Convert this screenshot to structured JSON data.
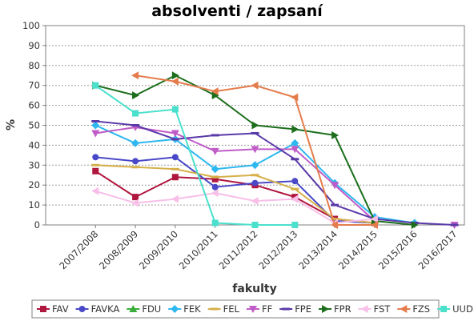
{
  "chart_data": {
    "type": "line",
    "title": "absolventi / zapsaní",
    "xlabel": "fakulty",
    "ylabel": "%",
    "ylim": [
      0,
      100
    ],
    "yticks": [
      "0",
      "10",
      "20",
      "30",
      "40",
      "50",
      "60",
      "70",
      "80",
      "90",
      "100"
    ],
    "grid": true,
    "legend_position": "bottom",
    "categories": [
      "2007/2008",
      "2008/2009",
      "2009/2010",
      "2010/2011",
      "2011/2012",
      "2012/2013",
      "2013/2014",
      "2014/2015",
      "2015/2016",
      "2016/2017"
    ],
    "series": [
      {
        "name": "FAV",
        "color": "#b0173f",
        "marker": "square",
        "values": [
          27,
          14,
          24,
          23,
          20,
          14,
          3,
          1,
          null,
          null
        ]
      },
      {
        "name": "FAVKA",
        "color": "#4848c8",
        "marker": "circle",
        "values": [
          34,
          32,
          34,
          19,
          21,
          22,
          2,
          1,
          null,
          null
        ]
      },
      {
        "name": "FDU",
        "color": "#3aae3a",
        "marker": "triangle-up",
        "values": [
          null,
          null,
          null,
          null,
          null,
          null,
          null,
          null,
          null,
          null
        ]
      },
      {
        "name": "FEK",
        "color": "#2eb8f0",
        "marker": "diamond",
        "values": [
          50,
          41,
          43,
          28,
          30,
          41,
          21,
          4,
          1,
          null
        ]
      },
      {
        "name": "FEL",
        "color": "#d6b04a",
        "marker": "dash",
        "values": [
          30,
          29,
          28,
          24,
          25,
          18,
          3,
          1,
          null,
          null
        ]
      },
      {
        "name": "FF",
        "color": "#c05cc8",
        "marker": "triangle-down",
        "values": [
          46,
          49,
          46,
          37,
          38,
          38,
          20,
          2,
          null,
          0
        ]
      },
      {
        "name": "FPE",
        "color": "#5a3aa8",
        "marker": "dash",
        "values": [
          52,
          50,
          43,
          45,
          46,
          33,
          10,
          3,
          1,
          0
        ]
      },
      {
        "name": "FPR",
        "color": "#1c6e1c",
        "marker": "triangle-right",
        "values": [
          70,
          65,
          75,
          65,
          50,
          48,
          45,
          2,
          0,
          null
        ]
      },
      {
        "name": "FST",
        "color": "#f7bfe8",
        "marker": "triangle-left",
        "values": [
          17,
          11,
          13,
          16,
          12,
          13,
          1,
          3,
          null,
          null
        ]
      },
      {
        "name": "FZS",
        "color": "#e57c4c",
        "marker": "triangle-left",
        "values": [
          null,
          75,
          72,
          67,
          70,
          64,
          0,
          0,
          null,
          null
        ]
      },
      {
        "name": "UUD",
        "color": "#4ae0cc",
        "marker": "square",
        "values": [
          70,
          56,
          58,
          1,
          0,
          0,
          null,
          null,
          null,
          null
        ]
      }
    ]
  }
}
